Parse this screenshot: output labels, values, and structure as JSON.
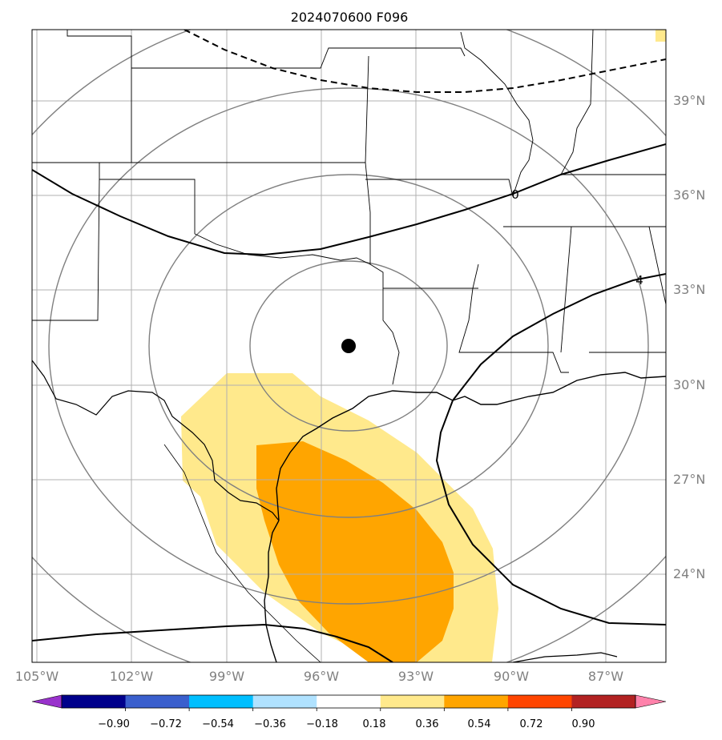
{
  "title": "2024070600 F096",
  "map": {
    "lat_labels": [
      "39°N",
      "36°N",
      "33°N",
      "30°N",
      "27°N",
      "24°N"
    ],
    "lon_labels": [
      "105°W",
      "102°W",
      "99°W",
      "96°W",
      "93°W",
      "90°W",
      "87°W"
    ],
    "contour_labels": [
      "0",
      "4"
    ],
    "center_marker": "storm-center-dot",
    "fill_colors": {
      "light": "#ffe98c",
      "medium": "#ffa500"
    }
  },
  "colorbar": {
    "ticks": [
      "−0.90",
      "−0.72",
      "−0.54",
      "−0.36",
      "−0.18",
      "0.18",
      "0.36",
      "0.54",
      "0.72",
      "0.90"
    ],
    "colors": [
      "#9932cc",
      "#00008b",
      "#3a5fcd",
      "#00bfff",
      "#b0e2ff",
      "#ffffff",
      "#ffe98c",
      "#ffa500",
      "#ff4500",
      "#b22222",
      "#ff82ab"
    ]
  }
}
